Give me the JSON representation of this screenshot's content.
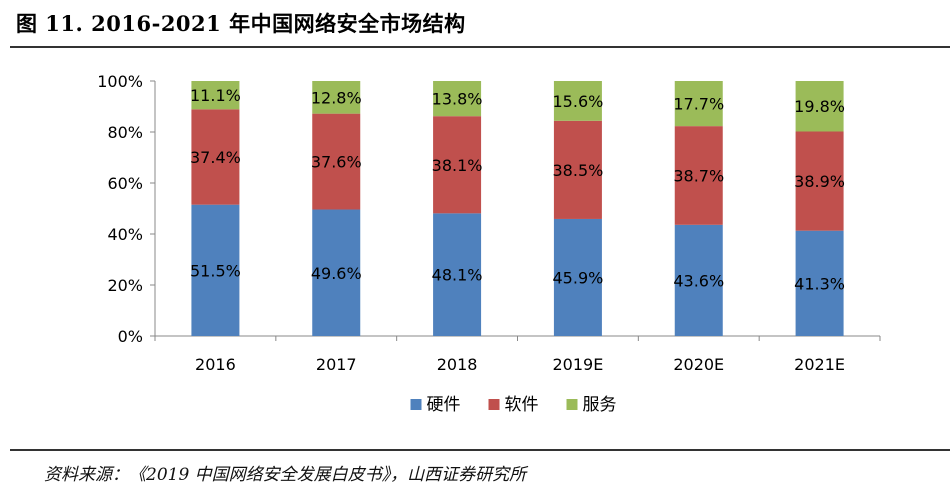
{
  "figure": {
    "title": "图 11. 2016-2021 年中国网络安全市场结构",
    "source": "资料来源：《2019 中国网络安全发展白皮书》，山西证券研究所"
  },
  "chart_data": {
    "type": "bar",
    "stacked": true,
    "categories": [
      "2016",
      "2017",
      "2018",
      "2019E",
      "2020E",
      "2021E"
    ],
    "series": [
      {
        "name": "硬件",
        "color": "#4f81bd",
        "values": [
          51.5,
          49.6,
          48.1,
          45.9,
          43.6,
          41.3
        ],
        "labels": [
          "51.5%",
          "49.6%",
          "48.1%",
          "45.9%",
          "43.6%",
          "41.3%"
        ]
      },
      {
        "name": "软件",
        "color": "#c0504d",
        "values": [
          37.4,
          37.6,
          38.1,
          38.5,
          38.7,
          38.9
        ],
        "labels": [
          "37.4%",
          "37.6%",
          "38.1%",
          "38.5%",
          "38.7%",
          "38.9%"
        ]
      },
      {
        "name": "服务",
        "color": "#9bbb59",
        "values": [
          11.1,
          12.8,
          13.8,
          15.6,
          17.7,
          19.8
        ],
        "labels": [
          "11.1%",
          "12.8%",
          "13.8%",
          "15.6%",
          "17.7%",
          "19.8%"
        ]
      }
    ],
    "ylim": [
      0,
      100
    ],
    "y_ticks": [
      "0%",
      "20%",
      "40%",
      "60%",
      "80%",
      "100%"
    ],
    "legend_position": "bottom-center",
    "grid": false
  }
}
